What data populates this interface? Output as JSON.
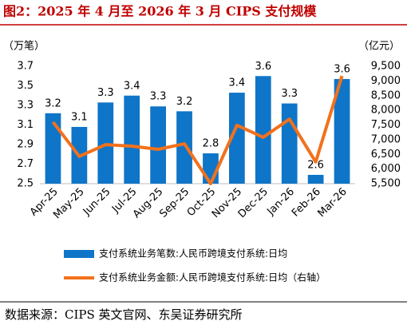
{
  "chart_data": {
    "type": "bar",
    "title": "图2：2025 年 4 月至 2026 年 3 月 CIPS 支付规模",
    "y_label": "（万笔）",
    "y2_label": "（亿元）",
    "categories": [
      "Apr-25",
      "May-25",
      "Jun-25",
      "Jul-25",
      "Aug-25",
      "Sep-25",
      "Oct-25",
      "Nov-25",
      "Dec-25",
      "Jan-26",
      "Feb-26",
      "Mar-26"
    ],
    "series": [
      {
        "name": "支付系统业务笔数:人民币跨境支付系统:日均",
        "type": "bar",
        "color": "#0f75c8",
        "axis": "y",
        "values": [
          3.22,
          3.08,
          3.33,
          3.4,
          3.29,
          3.24,
          2.81,
          3.43,
          3.6,
          3.32,
          2.59,
          3.57
        ],
        "value_labels": [
          "3.2",
          "3.1",
          "3.3",
          "3.4",
          "3.3",
          "3.2",
          "2.8",
          "3.4",
          "3.6",
          "3.3",
          "2.6",
          "3.6"
        ]
      },
      {
        "name": "支付系统业务金额:人民币跨境支付系统:日均（右轴）",
        "type": "line",
        "color": "#f2711c",
        "axis": "y2",
        "values": [
          7600,
          6430,
          6830,
          6780,
          6670,
          6860,
          5500,
          7490,
          7080,
          7700,
          6240,
          9170
        ]
      }
    ],
    "ylim": [
      2.5,
      3.7
    ],
    "yticks": [
      2.5,
      2.7,
      2.9,
      3.1,
      3.3,
      3.5,
      3.7
    ],
    "y2lim": [
      5500,
      9500
    ],
    "y2ticks": [
      {
        "value": 5500,
        "label": "5,500"
      },
      {
        "value": 6000,
        "label": "6,000"
      },
      {
        "value": 6500,
        "label": "6,500"
      },
      {
        "value": 7000,
        "label": "7,000"
      },
      {
        "value": 7500,
        "label": "7,500"
      },
      {
        "value": 8000,
        "label": "8,000"
      },
      {
        "value": 8500,
        "label": "8,500"
      },
      {
        "value": 9000,
        "label": "9,000"
      },
      {
        "value": 9500,
        "label": "9,500"
      }
    ],
    "legend": "bottom",
    "source": "数据来源：CIPS 英文官网、东吴证券研究所"
  }
}
